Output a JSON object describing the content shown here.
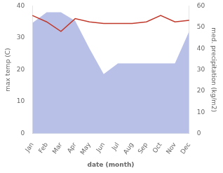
{
  "chart_data": {
    "type": "line",
    "categories": [
      "Jan",
      "Feb",
      "Mar",
      "Apr",
      "May",
      "Jun",
      "Jul",
      "Aug",
      "Sep",
      "Oct",
      "Nov",
      "Dec"
    ],
    "xlabel": "date (month)",
    "ylabel": "max temp (C)",
    "y2label": "med. precipitation (kg/m2)",
    "series": [
      {
        "type": "area",
        "axis": "y2",
        "color": "#b8c0e8",
        "values": [
          52,
          57,
          57,
          53,
          40,
          28,
          33,
          33,
          33,
          33,
          33,
          48
        ]
      },
      {
        "type": "line",
        "color": "#c0392b",
        "values": [
          37,
          35,
          32,
          36,
          35,
          34.5,
          34.5,
          34.5,
          35,
          37,
          35,
          35.5
        ]
      }
    ],
    "ylim": [
      0,
      40
    ],
    "yticks": [
      0,
      10,
      20,
      30,
      40
    ],
    "y2lim": [
      0,
      60
    ],
    "y2ticks": [
      0,
      10,
      20,
      30,
      40,
      50,
      60
    ],
    "grid": false
  }
}
